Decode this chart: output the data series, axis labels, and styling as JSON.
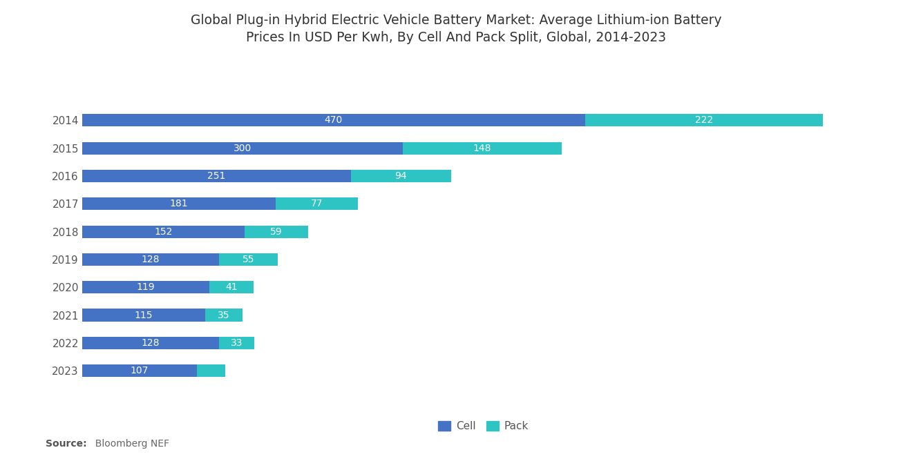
{
  "title": "Global Plug-in Hybrid Electric Vehicle Battery Market: Average Lithium-ion Battery\nPrices In USD Per Kwh, By Cell And Pack Split, Global, 2014-2023",
  "years": [
    "2014",
    "2015",
    "2016",
    "2017",
    "2018",
    "2019",
    "2020",
    "2021",
    "2022",
    "2023"
  ],
  "cell_values": [
    470,
    300,
    251,
    181,
    152,
    128,
    119,
    115,
    128,
    107
  ],
  "pack_values": [
    222,
    148,
    94,
    77,
    59,
    55,
    41,
    35,
    33,
    27
  ],
  "pack_label_show": [
    true,
    true,
    true,
    true,
    true,
    true,
    true,
    true,
    true,
    false
  ],
  "cell_color": "#4472C4",
  "pack_color": "#2EC4C4",
  "background_color": "#FFFFFF",
  "source_bold": "Source:",
  "source_normal": "  Bloomberg NEF",
  "legend_cell": "Cell",
  "legend_pack": "Pack",
  "xlim": 750,
  "bar_height": 0.45,
  "title_fontsize": 13.5,
  "label_fontsize": 10,
  "ytick_fontsize": 11
}
